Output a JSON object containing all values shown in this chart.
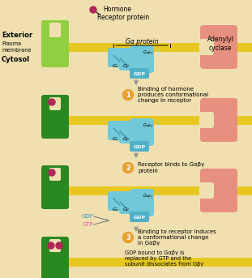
{
  "bg_color": "#f0e0b0",
  "membrane_color": "#e8c820",
  "receptor_light_color": "#90d040",
  "receptor_dark_color": "#2a8820",
  "g_protein_color": "#70c8d8",
  "g_protein_dark": "#50a8c0",
  "adenylyl_color": "#e89080",
  "hormone_color": "#b02858",
  "step_circle_color": "#e8a030",
  "arrow_color": "#909090",
  "gdp_box_color": "#50b0c8",
  "gdp_text_color": "#ffffff",
  "cyan_text": "#30a0c0",
  "pink_text": "#e060a0",
  "black": "#000000",
  "white": "#ffffff",
  "label_exterior": "Exterior",
  "label_plasma": "Plasma\nmembrane",
  "label_cytosol": "Cytosol",
  "label_hormone": "Hormone",
  "label_receptor_protein": "Receptor protein",
  "label_gs_protein": "Gα protein",
  "label_adenylyl": "Adenylyl\ncyclase",
  "label_gdp": "GDP",
  "label_gtp": "GTP",
  "step1_label": "1",
  "step1_text": "Binding of hormone\nproduces conformational\nchange in receptor",
  "step2_label": "2",
  "step2_text": "Receptor binds to Gαβγ\nprotein",
  "step3_label": "3",
  "step3_text": "Binding to receptor induces\na conformational change\nin Gαβγ",
  "step3_sub": "GDP bound to Gαβγ is\nreplaced by GTP and the\nsubunit dissociates from Gβγ",
  "figsize": [
    3.11,
    3.43
  ],
  "dpi": 100
}
